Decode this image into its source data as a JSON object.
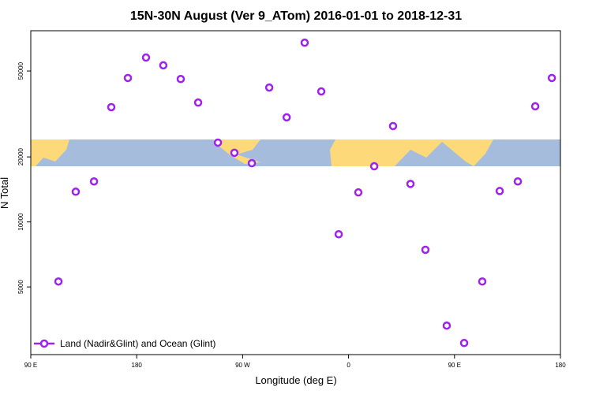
{
  "chart_data": {
    "type": "scatter",
    "title": "15N-30N August (Ver 9_ATom)   2016-01-01 to 2018-12-31",
    "x_label": "Longitude (deg E)",
    "y_label": "N Total",
    "xlim": [
      90,
      540
    ],
    "xticks": [
      {
        "value": 90,
        "label": "90 E"
      },
      180,
      {
        "value": 270,
        "label": "90 W"
      },
      {
        "value": 360,
        "label": "0"
      },
      {
        "value": 450,
        "label": "90 E"
      },
      {
        "value": 540,
        "label": "180"
      }
    ],
    "ylim": [
      2430,
      76800
    ],
    "ylog": true,
    "yticks": [
      5000,
      10000,
      20000,
      50000
    ],
    "legend": "lower left",
    "series": [
      {
        "name": "Land (Nadir&Glint) and Ocean (Glint)",
        "color": "#a020f0",
        "x": [
          113.5,
          128.2,
          143.7,
          158.4,
          172.5,
          187.9,
          202.6,
          217.4,
          232.2,
          249,
          263,
          277.8,
          292.6,
          307.4,
          322.7,
          336.8,
          351.6,
          368.3,
          381.8,
          397.8,
          412.6,
          425.3,
          443.4,
          458.2,
          473.6,
          488.4,
          503.8,
          518.6,
          532.7
        ],
        "values": [
          5300,
          13800,
          15400,
          34000,
          46400,
          57700,
          53100,
          45900,
          35700,
          23300,
          20900,
          18700,
          41900,
          30500,
          67600,
          40200,
          8770,
          13700,
          18100,
          27800,
          15000,
          7430,
          3310,
          2750,
          5300,
          13900,
          15400,
          34300,
          46400
        ]
      }
    ]
  }
}
